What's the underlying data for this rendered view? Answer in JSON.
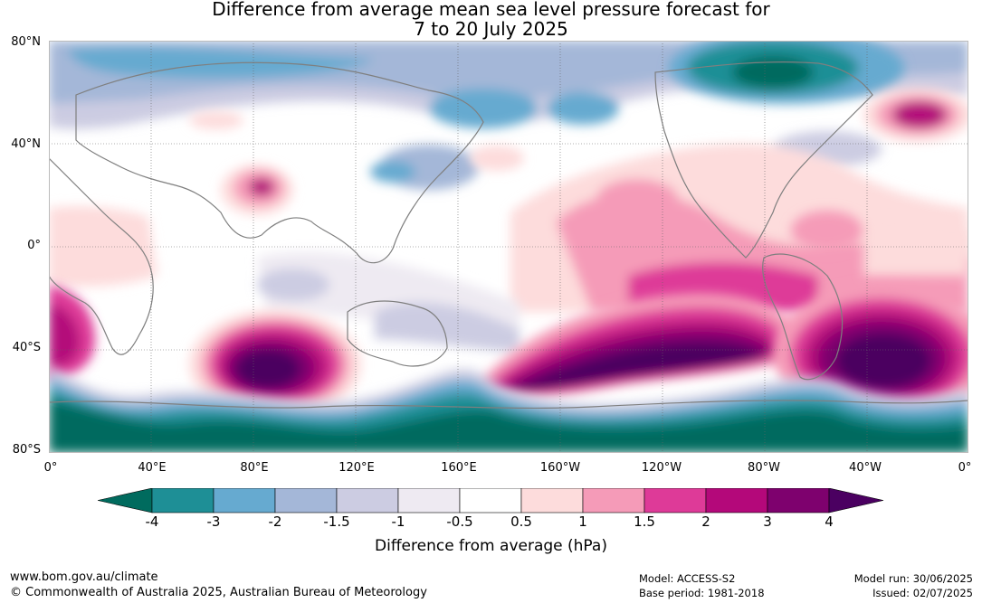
{
  "title": {
    "line1": "Difference from average mean sea level pressure forecast for",
    "line2": "7 to 20 July 2025"
  },
  "axes": {
    "lat_labels": [
      "80°N",
      "40°N",
      "0°",
      "40°S",
      "80°S"
    ],
    "lon_labels": [
      "0°",
      "40°E",
      "80°E",
      "120°E",
      "160°E",
      "160°W",
      "120°W",
      "80°W",
      "40°W",
      "0°"
    ]
  },
  "colorbar": {
    "title": "Difference from average (hPa)",
    "ticks": [
      "-4",
      "-3",
      "-2",
      "-1.5",
      "-1",
      "-0.5",
      "0.5",
      "1",
      "1.5",
      "2",
      "3",
      "4"
    ],
    "colors": [
      "#006b5e",
      "#1e8f96",
      "#66aad0",
      "#a4b7d8",
      "#cccce2",
      "#eeeaf2",
      "#ffffff",
      "#fddcdc",
      "#f59bb8",
      "#de3a98",
      "#b4087a",
      "#7e016e",
      "#4b0061"
    ]
  },
  "footer": {
    "url": "www.bom.gov.au/climate",
    "copyright": "© Commonwealth of Australia 2025, Australian Bureau of Meteorology",
    "model": "Model: ACCESS-S2",
    "base_period": "Base period: 1981-2018",
    "model_run": "Model run: 30/06/2025",
    "issued": "Issued: 02/07/2025"
  }
}
